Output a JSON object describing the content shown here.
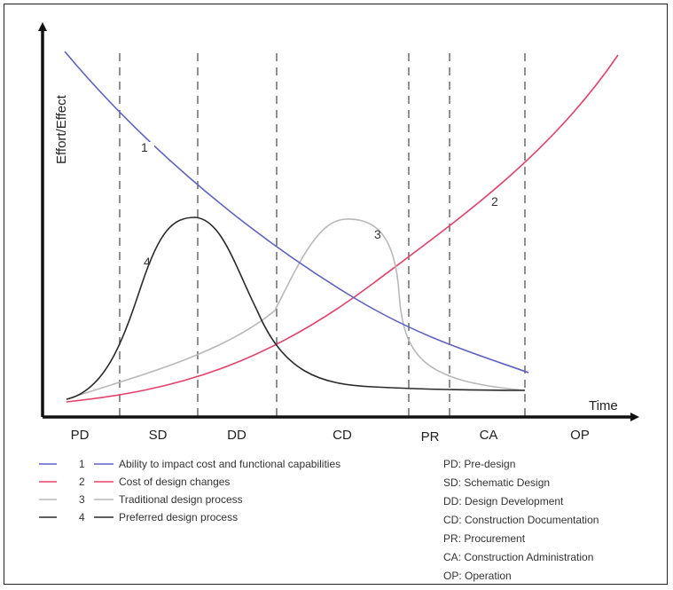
{
  "axes": {
    "ylabel": "Effort/Effect",
    "xlabel": "Time"
  },
  "phases": [
    "PD",
    "SD",
    "DD",
    "CD",
    "PR",
    "CA",
    "OP"
  ],
  "curves": [
    {
      "id": "1",
      "color": "#5b63c7"
    },
    {
      "id": "2",
      "color": "#e8406a"
    },
    {
      "id": "3",
      "color": "#b8b8b8"
    },
    {
      "id": "4",
      "color": "#2a2a2a"
    }
  ],
  "legend": [
    {
      "num": "1",
      "label": "Ability to impact cost and functional capabilities"
    },
    {
      "num": "2",
      "label": "Cost of design changes"
    },
    {
      "num": "3",
      "label": "Traditional design process"
    },
    {
      "num": "4",
      "label": "Preferred design process"
    }
  ],
  "abbreviations": [
    "PD: Pre-design",
    "SD: Schematic Design",
    "DD: Design Development",
    "CD: Construction Documentation",
    "PR: Procurement",
    "CA: Construction Administration",
    "OP: Operation"
  ]
}
